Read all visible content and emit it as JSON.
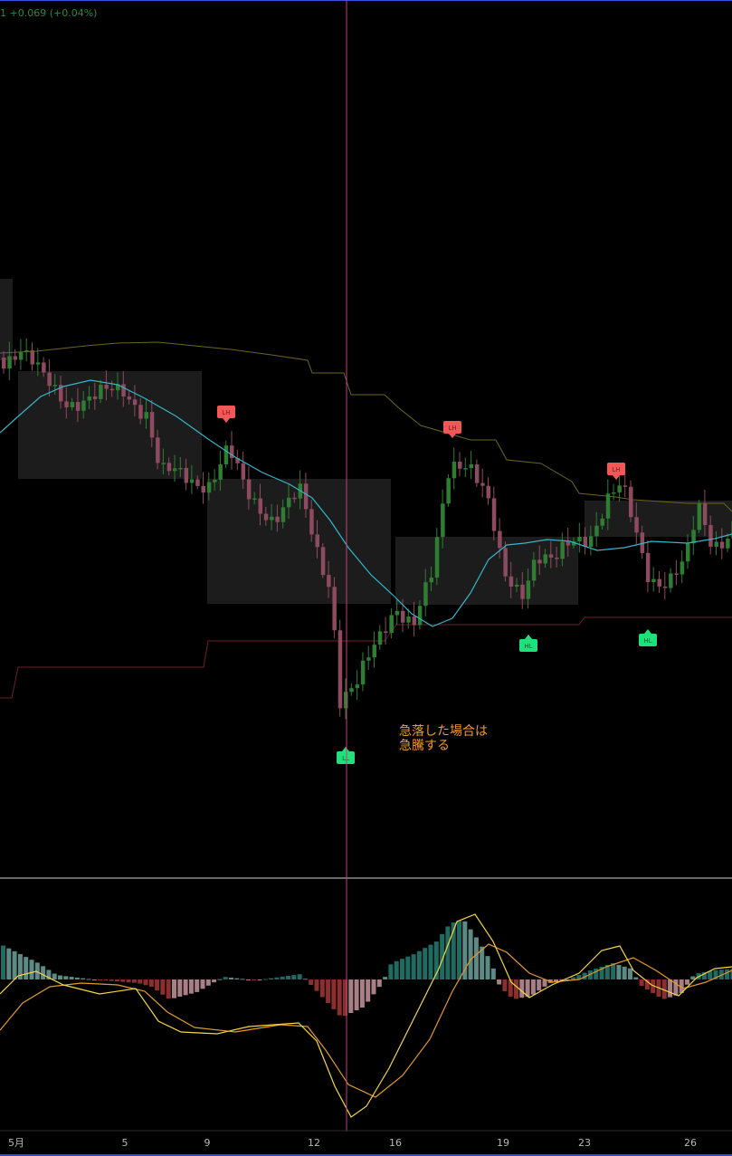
{
  "header": {
    "change_text": "1  +0.069 (+0.04%)"
  },
  "annotation": {
    "line1": "急落した場合は",
    "line2": "急騰する"
  },
  "colors": {
    "up": "#2e7d32",
    "down": "#8e4a5e",
    "ma": "#35b6c9",
    "upper_band": "#6b6420",
    "lower_band": "#6b1f2c",
    "cursor": "#d23a78",
    "note": "#f09a2a",
    "macd": "#f5d742",
    "signal": "#e39a2a",
    "hist_pos_strong": "#1f6b62",
    "hist_pos_weak": "#5e8a85",
    "hist_neg_strong": "#8b2e2e",
    "hist_neg_weak": "#a97f86",
    "zone": "#1c1c1c",
    "label_high": "#f25858",
    "label_low": "#1fe07a"
  },
  "chart_data": {
    "type": "candlestick",
    "x_ticks": [
      "5月",
      "5",
      "9",
      "12",
      "16",
      "19",
      "23",
      "26"
    ],
    "pivot_labels": [
      {
        "text": "LH",
        "kind": "high"
      },
      {
        "text": "LH",
        "kind": "high"
      },
      {
        "text": "LH",
        "kind": "high"
      },
      {
        "text": "LL",
        "kind": "low"
      },
      {
        "text": "HL",
        "kind": "low"
      },
      {
        "text": "HL",
        "kind": "low"
      }
    ],
    "indicator": {
      "type": "macd",
      "series": [
        {
          "name": "",
          "role": "macd"
        },
        {
          "name": "",
          "role": "signal"
        },
        {
          "name": "",
          "role": "histogram"
        }
      ]
    }
  }
}
